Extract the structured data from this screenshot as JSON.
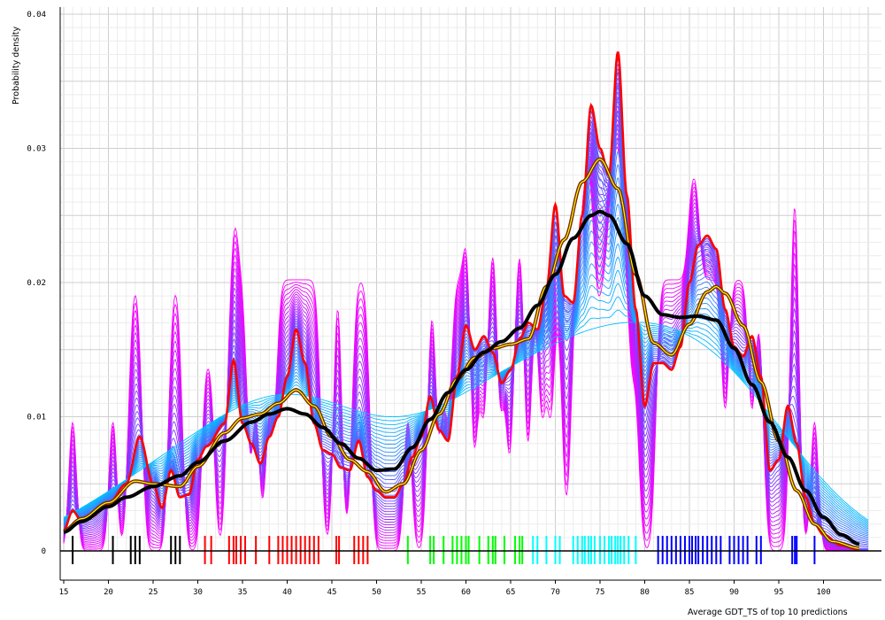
{
  "chart_data": {
    "type": "line",
    "title": "",
    "xlabel": "Average GDT_TS of top 10 predictions",
    "ylabel": "Probability density",
    "xlim": [
      15,
      105
    ],
    "ylim": [
      0,
      0.04
    ],
    "x_ticks": [
      "15",
      "20",
      "25",
      "30",
      "35",
      "40",
      "45",
      "50",
      "55",
      "60",
      "65",
      "70",
      "75",
      "80",
      "85",
      "90",
      "95",
      "100"
    ],
    "y_ticks": [
      "0",
      "0.01",
      "0.02",
      "0.03",
      "0.04"
    ],
    "grid": true,
    "legend": "none",
    "colors": {
      "narrow_bandwidth": "#ff00ff",
      "mid_bandwidth": "#7040ff",
      "wide_bandwidth": "#00c0ff",
      "highlight_red": "#ff0000",
      "highlight_brown": "#7a2a00",
      "highlight_yellow": "#ffff00",
      "highlight_black": "#000000",
      "rug_black": "#000000",
      "rug_red": "#ff0000",
      "rug_green": "#00ff00",
      "rug_cyan": "#00ffff",
      "rug_blue": "#0000ff"
    },
    "series": [
      {
        "id": "smooth_black",
        "x": [
          15,
          17,
          20,
          22,
          25,
          28,
          30,
          33,
          36,
          38,
          40,
          42,
          44,
          46,
          48,
          50,
          52,
          54,
          56,
          58,
          60,
          62,
          64,
          66,
          68,
          70,
          72,
          74,
          75,
          76,
          78,
          80,
          82,
          84,
          86,
          88,
          90,
          92,
          94,
          96,
          98,
          100,
          102,
          104
        ],
        "y": [
          0.0014,
          0.0022,
          0.0033,
          0.004,
          0.0048,
          0.0056,
          0.0066,
          0.0082,
          0.0096,
          0.0102,
          0.0106,
          0.0102,
          0.0092,
          0.008,
          0.0069,
          0.006,
          0.0061,
          0.0077,
          0.0098,
          0.0118,
          0.0135,
          0.0148,
          0.0156,
          0.0166,
          0.0183,
          0.0206,
          0.0233,
          0.025,
          0.0253,
          0.025,
          0.0229,
          0.019,
          0.0176,
          0.0174,
          0.0175,
          0.0172,
          0.0151,
          0.0124,
          0.0096,
          0.007,
          0.0045,
          0.0025,
          0.0012,
          0.0005
        ]
      },
      {
        "id": "smooth_brown",
        "x": [
          15,
          17,
          20,
          23,
          25,
          28,
          30,
          33,
          35,
          37,
          39,
          41,
          43,
          45,
          47,
          49,
          51,
          53,
          55,
          57,
          59,
          61,
          63,
          65,
          67,
          69,
          71,
          73,
          75,
          77,
          79,
          81,
          83,
          85,
          87,
          88,
          89,
          91,
          93,
          95,
          97,
          99,
          101,
          104
        ],
        "y": [
          0.0015,
          0.0024,
          0.0036,
          0.0052,
          0.005,
          0.0048,
          0.0063,
          0.0088,
          0.0099,
          0.0102,
          0.011,
          0.012,
          0.0108,
          0.0085,
          0.0068,
          0.0059,
          0.0044,
          0.005,
          0.0075,
          0.0102,
          0.0128,
          0.0144,
          0.0151,
          0.0154,
          0.0158,
          0.0197,
          0.0232,
          0.0275,
          0.0292,
          0.027,
          0.0206,
          0.0155,
          0.0146,
          0.0169,
          0.0193,
          0.0197,
          0.0192,
          0.0168,
          0.0126,
          0.0082,
          0.0045,
          0.002,
          0.0007,
          0.0002
        ]
      },
      {
        "id": "sharp_red",
        "x": [
          15,
          16,
          17,
          18,
          20,
          22,
          23.5,
          25,
          26,
          27,
          28,
          29,
          30,
          31,
          33,
          34,
          35,
          36,
          37,
          38,
          39,
          40,
          41,
          42,
          43,
          44,
          45,
          46,
          47,
          48,
          49,
          50,
          51,
          52,
          53,
          54,
          55,
          56,
          57,
          58,
          59,
          60,
          61,
          62,
          63,
          64,
          65,
          66,
          67,
          68,
          69,
          70,
          71,
          72,
          73,
          74,
          75,
          76,
          77,
          78,
          79,
          80,
          81,
          82,
          83,
          84,
          85,
          86,
          87,
          88,
          89,
          90,
          91,
          92,
          93,
          94,
          95,
          96,
          97,
          98,
          99,
          100,
          102,
          104
        ],
        "y": [
          0.0015,
          0.003,
          0.0022,
          0.0025,
          0.0035,
          0.005,
          0.0085,
          0.005,
          0.0032,
          0.006,
          0.004,
          0.0042,
          0.0068,
          0.0078,
          0.0095,
          0.0142,
          0.0095,
          0.008,
          0.0065,
          0.0085,
          0.01,
          0.013,
          0.0165,
          0.014,
          0.0095,
          0.0075,
          0.0072,
          0.0062,
          0.006,
          0.0082,
          0.0055,
          0.0045,
          0.004,
          0.004,
          0.005,
          0.007,
          0.0085,
          0.0115,
          0.009,
          0.0082,
          0.013,
          0.0168,
          0.015,
          0.016,
          0.0148,
          0.0125,
          0.0135,
          0.0158,
          0.017,
          0.0165,
          0.0195,
          0.0258,
          0.019,
          0.0185,
          0.025,
          0.0332,
          0.03,
          0.028,
          0.0372,
          0.0265,
          0.018,
          0.0108,
          0.014,
          0.014,
          0.0135,
          0.0152,
          0.02,
          0.0228,
          0.0235,
          0.0225,
          0.018,
          0.0152,
          0.0145,
          0.016,
          0.013,
          0.006,
          0.0068,
          0.0108,
          0.008,
          0.004,
          0.002,
          0.0012,
          0.0004,
          0.0001
        ]
      }
    ],
    "rug": [
      {
        "color": "black",
        "x": [
          16,
          20.5,
          22.5,
          23,
          23.5,
          27,
          27.5,
          28
        ]
      },
      {
        "color": "red",
        "x": [
          30.8,
          31.5,
          33.5,
          34,
          34.3,
          34.8,
          35.3,
          36.5,
          38,
          39,
          39.5,
          40,
          40.5,
          41,
          41.5,
          42,
          42.5,
          43,
          43.5,
          45.5,
          45.8,
          47.5,
          48,
          48.5,
          49
        ]
      },
      {
        "color": "green",
        "x": [
          53.5,
          56,
          56.4,
          57.5,
          58.5,
          59,
          59.5,
          60,
          60.3,
          61.5,
          62.5,
          63,
          63.3,
          64.3,
          65.5,
          66,
          66.3
        ]
      },
      {
        "color": "cyan",
        "x": [
          67.5,
          68,
          69,
          70,
          70.5,
          72,
          72.5,
          73,
          73.3,
          73.7,
          74,
          74.4,
          75,
          75.5,
          76,
          76.3,
          76.7,
          77,
          77.3,
          77.7,
          78.2,
          79
        ]
      },
      {
        "color": "blue",
        "x": [
          81.5,
          82,
          82.5,
          83,
          83.5,
          84,
          84.5,
          85,
          85.3,
          85.7,
          86,
          86.5,
          87,
          87.5,
          88,
          88.5,
          89.5,
          90,
          90.5,
          91,
          91.5,
          92.5,
          93,
          96.5,
          96.8,
          97,
          99
        ]
      }
    ]
  }
}
